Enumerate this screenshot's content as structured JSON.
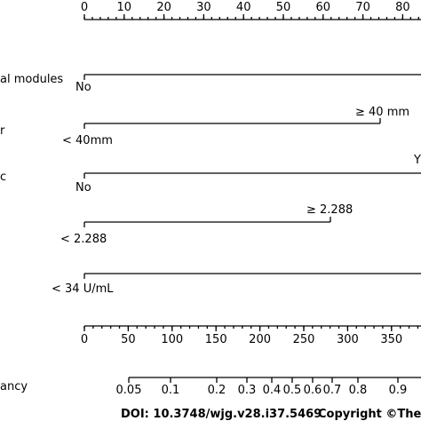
{
  "points_axis": {
    "ticks": [
      0,
      10,
      20,
      30,
      40,
      50,
      60,
      70,
      80
    ]
  },
  "variables": [
    {
      "name": "al modules",
      "levels": [
        "No"
      ]
    },
    {
      "name": "r",
      "levels": [
        "< 40mm",
        "≥ 40 mm"
      ]
    },
    {
      "name": "c",
      "levels": [
        "No",
        "Y"
      ]
    },
    {
      "name": null,
      "levels": [
        "< 2.288",
        "≥ 2.288"
      ]
    },
    {
      "name": null,
      "levels": [
        "< 34 U/mL"
      ]
    }
  ],
  "total_points_axis": {
    "ticks": [
      0,
      50,
      100,
      150,
      200,
      250,
      300,
      350
    ]
  },
  "probability_axis": {
    "name": "ancy",
    "ticks": [
      0.05,
      0.1,
      0.2,
      0.3,
      0.4,
      0.5,
      0.6,
      0.7,
      0.8,
      0.9
    ]
  },
  "footer": {
    "doi": "DOI: 10.3748/wjg.v28.i37.5469",
    "copyright": "Copyright ©The"
  }
}
